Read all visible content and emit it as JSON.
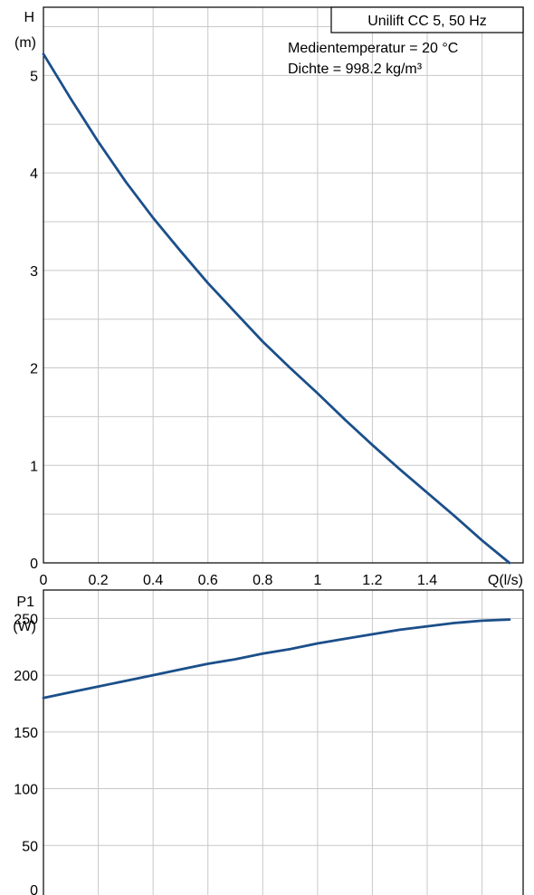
{
  "colors": {
    "curve": "#1b4f8a",
    "grid": "#c8c8c8",
    "frame": "#000000"
  },
  "chart_data": [
    {
      "type": "line",
      "title": "Unilift CC 5, 50 Hz",
      "annotations": [
        "Medientemperatur = 20 °C",
        "Dichte = 998.2 kg/m³"
      ],
      "xlabel": "Q(l/s)",
      "ylabel_line1": "H",
      "ylabel_line2": "(m)",
      "xlim": [
        0,
        1.75
      ],
      "ylim": [
        0,
        5.7
      ],
      "x_ticks": [
        0,
        0.2,
        0.4,
        0.6,
        0.8,
        1,
        1.2,
        1.4
      ],
      "x_tick_labels": [
        "0",
        "0.2",
        "0.4",
        "0.6",
        "0.8",
        "1",
        "1.2",
        "1.4"
      ],
      "y_ticks": [
        0,
        1,
        2,
        3,
        4,
        5
      ],
      "y_tick_labels": [
        "0",
        "1",
        "2",
        "3",
        "4",
        "5"
      ],
      "grid": true,
      "series": [
        {
          "x": [
            0,
            0.1,
            0.2,
            0.3,
            0.4,
            0.5,
            0.6,
            0.7,
            0.8,
            0.9,
            1.0,
            1.1,
            1.2,
            1.3,
            1.4,
            1.5,
            1.6,
            1.7
          ],
          "y": [
            5.22,
            4.76,
            4.32,
            3.91,
            3.54,
            3.2,
            2.87,
            2.57,
            2.27,
            2.0,
            1.74,
            1.47,
            1.21,
            0.96,
            0.72,
            0.48,
            0.23,
            0.0
          ]
        }
      ]
    },
    {
      "type": "line",
      "ylabel_line1": "P1",
      "ylabel_line2": "(W)",
      "xlim": [
        0,
        1.75
      ],
      "ylim": [
        0,
        275
      ],
      "y_ticks": [
        0,
        50,
        100,
        150,
        200,
        250
      ],
      "y_tick_labels": [
        "0",
        "50",
        "100",
        "150",
        "200",
        "250"
      ],
      "grid": true,
      "series": [
        {
          "x": [
            0,
            0.1,
            0.2,
            0.3,
            0.4,
            0.5,
            0.6,
            0.7,
            0.8,
            0.9,
            1.0,
            1.1,
            1.2,
            1.3,
            1.4,
            1.5,
            1.6,
            1.7
          ],
          "y": [
            180,
            185,
            190,
            195,
            200,
            205,
            210,
            214,
            219,
            223,
            228,
            232,
            236,
            240,
            243,
            246,
            248,
            249
          ]
        }
      ]
    }
  ]
}
